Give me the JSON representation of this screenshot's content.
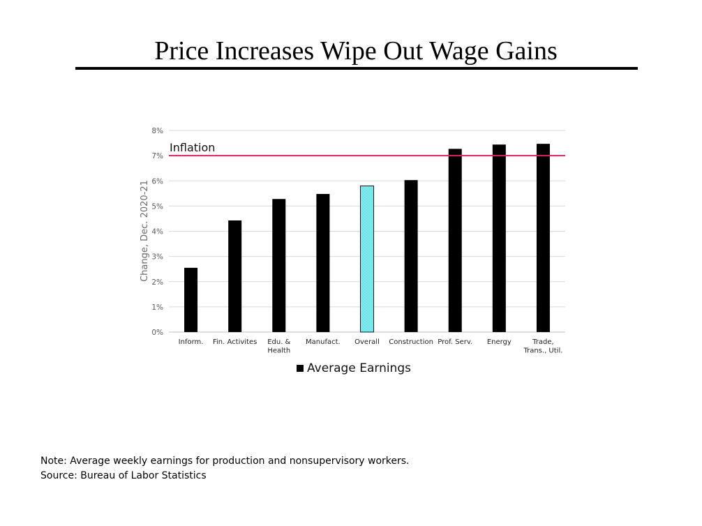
{
  "slide": {
    "title": "Price Increases Wipe Out Wage Gains",
    "note": "Note: Average weekly earnings for production and nonsupervisory workers.",
    "source": "Source: Bureau of Labor Statistics"
  },
  "chart_data": {
    "type": "bar",
    "title": "",
    "xlabel": "",
    "ylabel": "Change, Dec. 2020-21",
    "ylim": [
      0,
      8
    ],
    "y_ticks": [
      "0%",
      "1%",
      "2%",
      "3%",
      "4%",
      "5%",
      "6%",
      "7%",
      "8%"
    ],
    "grid": true,
    "categories": [
      [
        "Inform."
      ],
      [
        "Fin. Activites"
      ],
      [
        "Edu. &",
        "Health"
      ],
      [
        "Manufact."
      ],
      [
        "Overall"
      ],
      [
        "Construction"
      ],
      [
        "Prof. Serv."
      ],
      [
        "Energy"
      ],
      [
        "Trade,",
        "Trans., Util."
      ]
    ],
    "series": [
      {
        "name": "Average Earnings",
        "values": [
          2.55,
          4.43,
          5.28,
          5.48,
          5.8,
          6.03,
          7.27,
          7.44,
          7.47
        ]
      }
    ],
    "highlight_index": 4,
    "bar_color": "#000000",
    "highlight_color": "#7EEBEE",
    "reference_line": {
      "label": "Inflation",
      "value": 7.0,
      "color": "#D8226A"
    },
    "grid_color": "#D9D9D9",
    "legend_position": "bottom-center"
  }
}
